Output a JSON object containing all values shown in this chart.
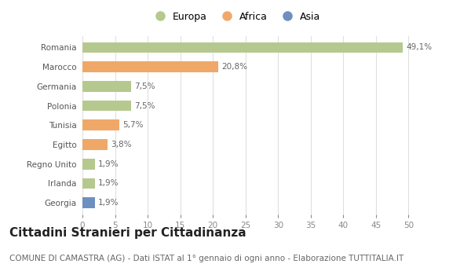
{
  "countries": [
    "Romania",
    "Marocco",
    "Germania",
    "Polonia",
    "Tunisia",
    "Egitto",
    "Regno Unito",
    "Irlanda",
    "Georgia"
  ],
  "values": [
    49.1,
    20.8,
    7.5,
    7.5,
    5.7,
    3.8,
    1.9,
    1.9,
    1.9
  ],
  "labels": [
    "49,1%",
    "20,8%",
    "7,5%",
    "7,5%",
    "5,7%",
    "3,8%",
    "1,9%",
    "1,9%",
    "1,9%"
  ],
  "continents": [
    "Europa",
    "Africa",
    "Europa",
    "Europa",
    "Africa",
    "Africa",
    "Europa",
    "Europa",
    "Asia"
  ],
  "colors": {
    "Europa": "#b5c98e",
    "Africa": "#f0a868",
    "Asia": "#6e90c0"
  },
  "xlim": [
    0,
    52
  ],
  "xticks": [
    0,
    5,
    10,
    15,
    20,
    25,
    30,
    35,
    40,
    45,
    50
  ],
  "title": "Cittadini Stranieri per Cittadinanza",
  "subtitle": "COMUNE DI CAMASTRA (AG) - Dati ISTAT al 1° gennaio di ogni anno - Elaborazione TUTTITALIA.IT",
  "bg_color": "#ffffff",
  "grid_color": "#e0e0e0",
  "bar_height": 0.55,
  "title_fontsize": 11,
  "subtitle_fontsize": 7.5,
  "label_fontsize": 7.5,
  "tick_fontsize": 7.5,
  "legend_fontsize": 9
}
